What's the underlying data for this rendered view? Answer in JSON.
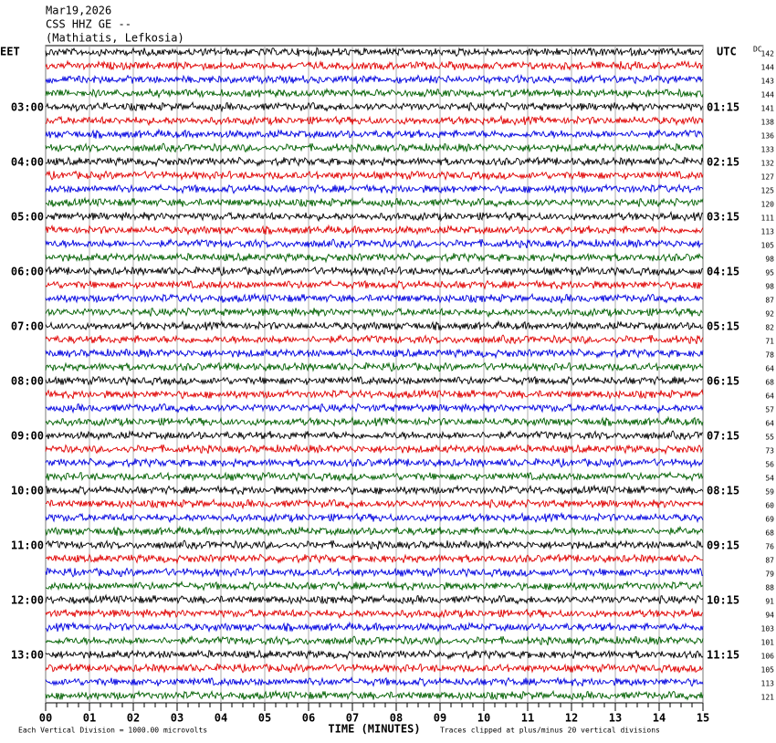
{
  "header": {
    "date": "Mar19,2026",
    "station": "CSS HHZ GE --",
    "location": "(Mathiatis, Lefkosia)"
  },
  "left_zone": "EET",
  "right_zone": "UTC",
  "dc_title": "DC",
  "left_labels": [
    "03:00",
    "04:00",
    "05:00",
    "06:00",
    "07:00",
    "08:00",
    "09:00",
    "10:00",
    "11:00",
    "12:00",
    "13:00"
  ],
  "right_labels": [
    "01:15",
    "02:15",
    "03:15",
    "04:15",
    "05:15",
    "06:15",
    "07:15",
    "08:15",
    "09:15",
    "10:15",
    "11:15"
  ],
  "dc_values": [
    142,
    144,
    143,
    144,
    141,
    138,
    136,
    133,
    132,
    127,
    125,
    120,
    111,
    113,
    105,
    98,
    95,
    98,
    87,
    92,
    82,
    71,
    78,
    64,
    68,
    64,
    57,
    64,
    55,
    73,
    56,
    54,
    59,
    60,
    69,
    68,
    76,
    87,
    79,
    88,
    91,
    94,
    103,
    101,
    106,
    105,
    113,
    121
  ],
  "trace_colors": [
    "#000000",
    "#e00000",
    "#0000e0",
    "#006000"
  ],
  "xlim": [
    0,
    15
  ],
  "xticks": [
    {
      "value": 0,
      "label": "00"
    },
    {
      "value": 1,
      "label": "01"
    },
    {
      "value": 2,
      "label": "02"
    },
    {
      "value": 3,
      "label": "03"
    },
    {
      "value": 4,
      "label": "04"
    },
    {
      "value": 5,
      "label": "05"
    },
    {
      "value": 6,
      "label": "06"
    },
    {
      "value": 7,
      "label": "07"
    },
    {
      "value": 8,
      "label": "08"
    },
    {
      "value": 9,
      "label": "09"
    },
    {
      "value": 10,
      "label": "10"
    },
    {
      "value": 11,
      "label": "11"
    },
    {
      "value": 12,
      "label": "12"
    },
    {
      "value": 13,
      "label": "13"
    },
    {
      "value": 14,
      "label": "14"
    },
    {
      "value": 15,
      "label": "15"
    }
  ],
  "xlabel": "TIME (MINUTES)",
  "footer_left": "Each Vertical Division = 1000.00 microvolts",
  "footer_right": "Traces clipped at plus/minus 20 vertical divisions"
}
